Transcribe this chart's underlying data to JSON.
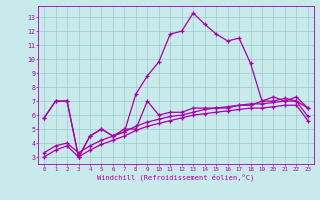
{
  "xlabel": "Windchill (Refroidissement éolien,°C)",
  "background_color": "#c8eaea",
  "line_color": "#aa00aa",
  "grid_color": "#99cccc",
  "x_ticks": [
    0,
    1,
    2,
    3,
    4,
    5,
    6,
    7,
    8,
    9,
    10,
    11,
    12,
    13,
    14,
    15,
    16,
    17,
    18,
    19,
    20,
    21,
    22,
    23
  ],
  "y_ticks": [
    3,
    4,
    5,
    6,
    7,
    8,
    9,
    10,
    11,
    12,
    13
  ],
  "ylim": [
    2.5,
    13.8
  ],
  "xlim": [
    -0.5,
    23.5
  ],
  "line1_y": [
    5.8,
    7.0,
    7.0,
    3.0,
    4.5,
    5.0,
    4.5,
    4.8,
    7.5,
    8.8,
    9.8,
    11.8,
    12.0,
    13.3,
    12.5,
    11.8,
    11.3,
    11.5,
    9.7,
    7.0,
    7.3,
    7.0,
    7.3,
    6.5
  ],
  "line2_y": [
    5.8,
    7.0,
    7.0,
    3.0,
    4.5,
    5.0,
    4.5,
    5.0,
    5.0,
    7.0,
    6.0,
    6.2,
    6.2,
    6.5,
    6.5,
    6.5,
    6.5,
    6.7,
    6.7,
    7.0,
    7.0,
    7.2,
    7.0,
    6.5
  ],
  "line3_y": [
    3.3,
    3.8,
    4.0,
    3.3,
    3.8,
    4.2,
    4.5,
    4.8,
    5.2,
    5.5,
    5.7,
    5.9,
    6.0,
    6.2,
    6.4,
    6.5,
    6.6,
    6.7,
    6.8,
    6.8,
    6.9,
    7.0,
    7.0,
    5.9
  ],
  "line4_y": [
    3.0,
    3.5,
    3.8,
    3.0,
    3.5,
    3.9,
    4.2,
    4.5,
    4.9,
    5.2,
    5.4,
    5.6,
    5.8,
    6.0,
    6.1,
    6.2,
    6.3,
    6.4,
    6.5,
    6.5,
    6.6,
    6.7,
    6.7,
    5.6
  ]
}
